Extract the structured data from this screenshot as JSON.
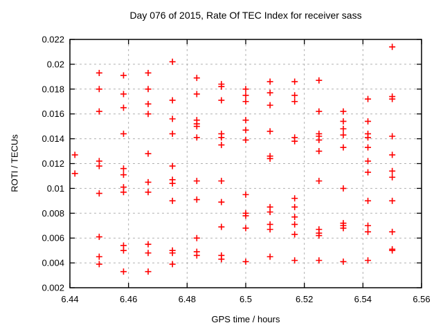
{
  "chart_data": {
    "type": "scatter",
    "title": "Day 076 of 2015, Rate Of TEC Index for receiver sass",
    "xlabel": "GPS time / hours",
    "ylabel": "ROTI / TECUs",
    "xlim": [
      6.44,
      6.56
    ],
    "ylim": [
      0.002,
      0.022
    ],
    "xticks": [
      6.44,
      6.46,
      6.48,
      6.5,
      6.52,
      6.54,
      6.56
    ],
    "xtick_labels": [
      "6.44",
      "6.46",
      "6.48",
      "6.5",
      "6.52",
      "6.54",
      "6.56"
    ],
    "yticks": [
      0.002,
      0.004,
      0.006,
      0.008,
      0.01,
      0.012,
      0.014,
      0.016,
      0.018,
      0.02,
      0.022
    ],
    "ytick_labels": [
      "0.002",
      "0.004",
      "0.006",
      "0.008",
      "0.01",
      "0.012",
      "0.014",
      "0.016",
      "0.018",
      "0.02",
      "0.022"
    ],
    "grid": true,
    "legend": "none",
    "marker": {
      "shape": "plus",
      "color": "#ff0000",
      "size": 9
    },
    "colors": {
      "grid": "#b0b0b0",
      "axis": "#000000",
      "text": "#000000",
      "background": "#ffffff"
    },
    "series": [
      {
        "name": "roti",
        "points": [
          [
            6.4417,
            0.0127
          ],
          [
            6.4417,
            0.0112
          ],
          [
            6.45,
            0.0193
          ],
          [
            6.45,
            0.018
          ],
          [
            6.45,
            0.0162
          ],
          [
            6.45,
            0.0122
          ],
          [
            6.45,
            0.0118
          ],
          [
            6.45,
            0.0096
          ],
          [
            6.45,
            0.0061
          ],
          [
            6.45,
            0.0045
          ],
          [
            6.45,
            0.0039
          ],
          [
            6.4583,
            0.0191
          ],
          [
            6.4583,
            0.0176
          ],
          [
            6.4583,
            0.0165
          ],
          [
            6.4583,
            0.0144
          ],
          [
            6.4583,
            0.0116
          ],
          [
            6.4583,
            0.0111
          ],
          [
            6.4583,
            0.0101
          ],
          [
            6.4583,
            0.0097
          ],
          [
            6.4583,
            0.0054
          ],
          [
            6.4583,
            0.005
          ],
          [
            6.4583,
            0.0033
          ],
          [
            6.4667,
            0.0193
          ],
          [
            6.4667,
            0.018
          ],
          [
            6.4667,
            0.0168
          ],
          [
            6.4667,
            0.016
          ],
          [
            6.4667,
            0.0128
          ],
          [
            6.4667,
            0.0105
          ],
          [
            6.4667,
            0.0097
          ],
          [
            6.4667,
            0.0055
          ],
          [
            6.4667,
            0.0048
          ],
          [
            6.4667,
            0.0033
          ],
          [
            6.475,
            0.0202
          ],
          [
            6.475,
            0.0171
          ],
          [
            6.475,
            0.0156
          ],
          [
            6.475,
            0.0144
          ],
          [
            6.475,
            0.0118
          ],
          [
            6.475,
            0.0107
          ],
          [
            6.475,
            0.0104
          ],
          [
            6.475,
            0.009
          ],
          [
            6.475,
            0.005
          ],
          [
            6.475,
            0.0048
          ],
          [
            6.475,
            0.0039
          ],
          [
            6.4833,
            0.0189
          ],
          [
            6.4833,
            0.0176
          ],
          [
            6.4833,
            0.0155
          ],
          [
            6.4833,
            0.0152
          ],
          [
            6.4833,
            0.015
          ],
          [
            6.4833,
            0.0141
          ],
          [
            6.4833,
            0.0106
          ],
          [
            6.4833,
            0.0091
          ],
          [
            6.4833,
            0.006
          ],
          [
            6.4833,
            0.0049
          ],
          [
            6.4833,
            0.0046
          ],
          [
            6.4917,
            0.0184
          ],
          [
            6.4917,
            0.0182
          ],
          [
            6.4917,
            0.0171
          ],
          [
            6.4917,
            0.0144
          ],
          [
            6.4917,
            0.0141
          ],
          [
            6.4917,
            0.0135
          ],
          [
            6.4917,
            0.0106
          ],
          [
            6.4917,
            0.0089
          ],
          [
            6.4917,
            0.0069
          ],
          [
            6.4917,
            0.0046
          ],
          [
            6.4917,
            0.0043
          ],
          [
            6.5,
            0.018
          ],
          [
            6.5,
            0.0175
          ],
          [
            6.5,
            0.017
          ],
          [
            6.5,
            0.0155
          ],
          [
            6.5,
            0.0147
          ],
          [
            6.5,
            0.0139
          ],
          [
            6.5,
            0.0095
          ],
          [
            6.5,
            0.008
          ],
          [
            6.5,
            0.0078
          ],
          [
            6.5,
            0.0068
          ],
          [
            6.5,
            0.0041
          ],
          [
            6.5083,
            0.0186
          ],
          [
            6.5083,
            0.0177
          ],
          [
            6.5083,
            0.0167
          ],
          [
            6.5083,
            0.0146
          ],
          [
            6.5083,
            0.0126
          ],
          [
            6.5083,
            0.0124
          ],
          [
            6.5083,
            0.0085
          ],
          [
            6.5083,
            0.0081
          ],
          [
            6.5083,
            0.0071
          ],
          [
            6.5083,
            0.0067
          ],
          [
            6.5083,
            0.0045
          ],
          [
            6.5167,
            0.0186
          ],
          [
            6.5167,
            0.0175
          ],
          [
            6.5167,
            0.017
          ],
          [
            6.5167,
            0.0141
          ],
          [
            6.5167,
            0.0138
          ],
          [
            6.5167,
            0.0092
          ],
          [
            6.5167,
            0.0085
          ],
          [
            6.5167,
            0.0077
          ],
          [
            6.5167,
            0.0071
          ],
          [
            6.5167,
            0.0063
          ],
          [
            6.5167,
            0.0042
          ],
          [
            6.525,
            0.0187
          ],
          [
            6.525,
            0.0162
          ],
          [
            6.525,
            0.0144
          ],
          [
            6.525,
            0.0142
          ],
          [
            6.525,
            0.0139
          ],
          [
            6.525,
            0.013
          ],
          [
            6.525,
            0.0106
          ],
          [
            6.525,
            0.0067
          ],
          [
            6.525,
            0.0064
          ],
          [
            6.525,
            0.0062
          ],
          [
            6.525,
            0.0042
          ],
          [
            6.5333,
            0.0162
          ],
          [
            6.5333,
            0.0154
          ],
          [
            6.5333,
            0.0148
          ],
          [
            6.5333,
            0.0143
          ],
          [
            6.5333,
            0.0133
          ],
          [
            6.5333,
            0.01
          ],
          [
            6.5333,
            0.0072
          ],
          [
            6.5333,
            0.007
          ],
          [
            6.5333,
            0.0068
          ],
          [
            6.5333,
            0.0041
          ],
          [
            6.5417,
            0.0172
          ],
          [
            6.5417,
            0.0154
          ],
          [
            6.5417,
            0.0144
          ],
          [
            6.5417,
            0.0141
          ],
          [
            6.5417,
            0.0133
          ],
          [
            6.5417,
            0.0122
          ],
          [
            6.5417,
            0.0113
          ],
          [
            6.5417,
            0.009
          ],
          [
            6.5417,
            0.007
          ],
          [
            6.5417,
            0.0065
          ],
          [
            6.5417,
            0.0042
          ],
          [
            6.55,
            0.0214
          ],
          [
            6.55,
            0.0174
          ],
          [
            6.55,
            0.0172
          ],
          [
            6.55,
            0.0142
          ],
          [
            6.55,
            0.0127
          ],
          [
            6.55,
            0.0114
          ],
          [
            6.55,
            0.0109
          ],
          [
            6.55,
            0.009
          ],
          [
            6.55,
            0.0065
          ],
          [
            6.55,
            0.0051
          ],
          [
            6.55,
            0.005
          ]
        ]
      }
    ]
  }
}
